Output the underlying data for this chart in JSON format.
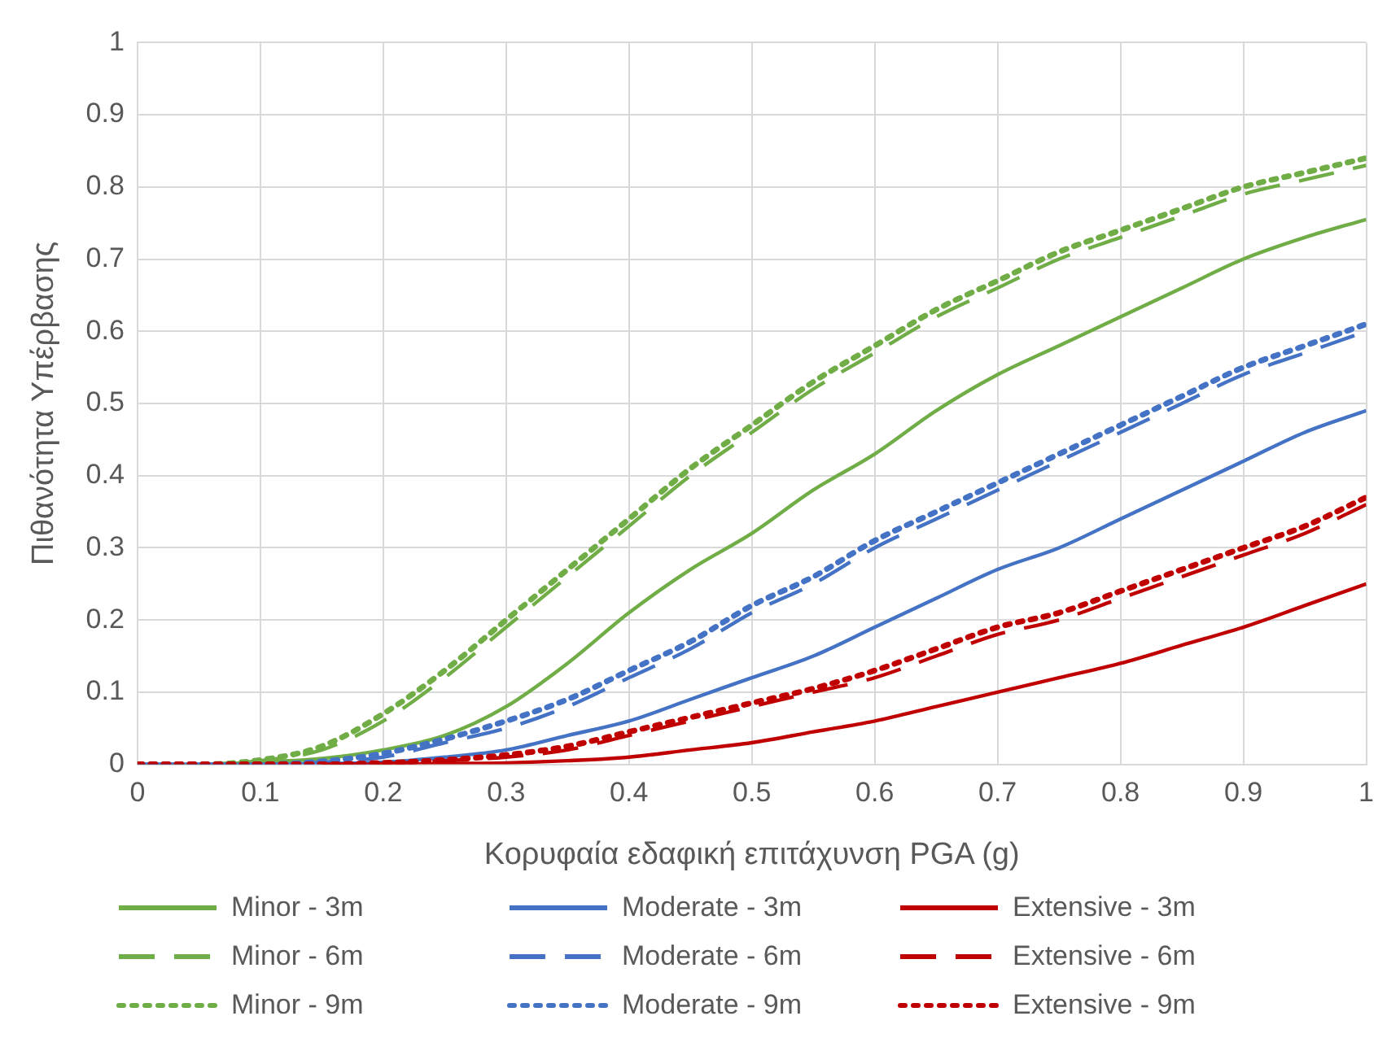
{
  "chart_data": {
    "type": "line",
    "xlabel": "Κορυφαία εδαφική επιτάχυνση PGA (g)",
    "ylabel": "Πιθανότητα Υπέρβασης",
    "x": [
      0,
      0.05,
      0.1,
      0.15,
      0.2,
      0.25,
      0.3,
      0.35,
      0.4,
      0.45,
      0.5,
      0.55,
      0.6,
      0.65,
      0.7,
      0.75,
      0.8,
      0.85,
      0.9,
      0.95,
      1
    ],
    "xlim": [
      0,
      1
    ],
    "xticks": [
      0,
      0.1,
      0.2,
      0.3,
      0.4,
      0.5,
      0.6,
      0.7,
      0.8,
      0.9,
      1
    ],
    "ylim": [
      0,
      1
    ],
    "yticks": [
      0,
      0.1,
      0.2,
      0.3,
      0.4,
      0.5,
      0.6,
      0.7,
      0.8,
      0.9,
      1
    ],
    "grid": true,
    "legend": "bottom",
    "marker": "none",
    "series": [
      {
        "name": "Minor - 3m",
        "color": "#70ad47",
        "line_style": "solid",
        "values": [
          0,
          0,
          0.003,
          0.008,
          0.02,
          0.04,
          0.08,
          0.14,
          0.21,
          0.27,
          0.32,
          0.38,
          0.43,
          0.49,
          0.54,
          0.58,
          0.62,
          0.66,
          0.7,
          0.73,
          0.755
        ]
      },
      {
        "name": "Minor - 6m",
        "color": "#70ad47",
        "line_style": "dashed",
        "values": [
          0,
          0,
          0.005,
          0.02,
          0.06,
          0.12,
          0.19,
          0.26,
          0.33,
          0.4,
          0.46,
          0.52,
          0.57,
          0.62,
          0.66,
          0.7,
          0.73,
          0.76,
          0.79,
          0.81,
          0.83
        ]
      },
      {
        "name": "Minor - 9m",
        "color": "#70ad47",
        "line_style": "dotted",
        "values": [
          0,
          0,
          0.006,
          0.025,
          0.07,
          0.13,
          0.2,
          0.27,
          0.34,
          0.41,
          0.47,
          0.53,
          0.58,
          0.63,
          0.67,
          0.71,
          0.74,
          0.77,
          0.8,
          0.82,
          0.84
        ]
      },
      {
        "name": "Moderate - 3m",
        "color": "#4472c4",
        "line_style": "solid",
        "values": [
          0,
          0,
          0,
          0.001,
          0.003,
          0.01,
          0.02,
          0.04,
          0.06,
          0.09,
          0.12,
          0.15,
          0.19,
          0.23,
          0.27,
          0.3,
          0.34,
          0.38,
          0.42,
          0.46,
          0.49
        ]
      },
      {
        "name": "Moderate - 6m",
        "color": "#4472c4",
        "line_style": "dashed",
        "values": [
          0,
          0,
          0,
          0.003,
          0.01,
          0.03,
          0.05,
          0.08,
          0.12,
          0.16,
          0.21,
          0.25,
          0.3,
          0.34,
          0.38,
          0.42,
          0.46,
          0.5,
          0.54,
          0.57,
          0.6
        ]
      },
      {
        "name": "Moderate - 9m",
        "color": "#4472c4",
        "line_style": "dotted",
        "values": [
          0,
          0,
          0,
          0.004,
          0.015,
          0.035,
          0.06,
          0.09,
          0.13,
          0.17,
          0.22,
          0.26,
          0.31,
          0.35,
          0.39,
          0.43,
          0.47,
          0.51,
          0.55,
          0.58,
          0.61
        ]
      },
      {
        "name": "Extensive - 3m",
        "color": "#c00000",
        "line_style": "solid",
        "values": [
          null,
          null,
          null,
          0,
          0,
          0.001,
          0.002,
          0.005,
          0.01,
          0.02,
          0.03,
          0.045,
          0.06,
          0.08,
          0.1,
          0.12,
          0.14,
          0.165,
          0.19,
          0.22,
          0.25
        ]
      },
      {
        "name": "Extensive - 6m",
        "color": "#c00000",
        "line_style": "dashed",
        "values": [
          null,
          null,
          null,
          0,
          0.001,
          0.005,
          0.01,
          0.02,
          0.04,
          0.06,
          0.08,
          0.1,
          0.12,
          0.15,
          0.18,
          0.2,
          0.23,
          0.26,
          0.29,
          0.32,
          0.36
        ]
      },
      {
        "name": "Extensive - 9m",
        "color": "#c00000",
        "line_style": "dotted",
        "values": [
          0,
          0,
          0,
          0,
          0.002,
          0.006,
          0.013,
          0.025,
          0.045,
          0.065,
          0.085,
          0.105,
          0.13,
          0.16,
          0.19,
          0.21,
          0.24,
          0.27,
          0.3,
          0.33,
          0.37
        ]
      }
    ]
  }
}
